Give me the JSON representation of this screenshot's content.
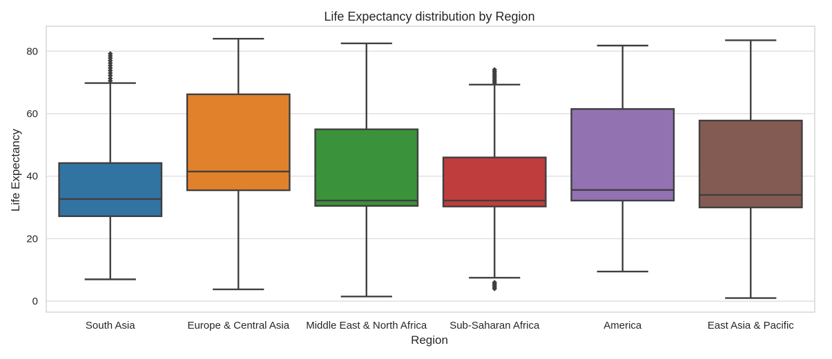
{
  "chart_data": {
    "type": "box",
    "title": "Life Expectancy distribution by Region",
    "xlabel": "Region",
    "ylabel": "Life Expectancy",
    "ylim": [
      -3.5,
      88
    ],
    "yticks": [
      0,
      20,
      40,
      60,
      80
    ],
    "grid": true,
    "legend": "none",
    "categories": [
      "South Asia",
      "Europe & Central Asia",
      "Middle East & North Africa",
      "Sub-Saharan Africa",
      "America",
      "East Asia & Pacific"
    ],
    "colors": [
      "#3274a1",
      "#e1812c",
      "#3a923a",
      "#c03d3e",
      "#9372b2",
      "#845b53"
    ],
    "boxes": [
      {
        "whisker_low": 7.0,
        "q1": 27.2,
        "median": 32.7,
        "q3": 44.2,
        "whisker_high": 69.8,
        "outliers": [
          70.5,
          71.3,
          72.2,
          73.0,
          73.8,
          74.6,
          75.4,
          76.2,
          77.0,
          77.8,
          78.5,
          79.2
        ]
      },
      {
        "whisker_low": 3.8,
        "q1": 35.5,
        "median": 41.5,
        "q3": 66.2,
        "whisker_high": 84.0,
        "outliers": []
      },
      {
        "whisker_low": 1.5,
        "q1": 30.5,
        "median": 32.2,
        "q3": 55.0,
        "whisker_high": 82.5,
        "outliers": []
      },
      {
        "whisker_low": 7.5,
        "q1": 30.3,
        "median": 32.2,
        "q3": 46.0,
        "whisker_high": 69.3,
        "outliers": [
          4.0,
          4.5,
          5.0,
          5.5,
          6.0,
          69.9,
          70.5,
          71.1,
          71.7,
          72.3,
          72.9,
          73.5,
          74.1
        ]
      },
      {
        "whisker_low": 9.5,
        "q1": 32.2,
        "median": 35.6,
        "q3": 61.5,
        "whisker_high": 81.8,
        "outliers": []
      },
      {
        "whisker_low": 1.0,
        "q1": 30.0,
        "median": 34.0,
        "q3": 57.8,
        "whisker_high": 83.5,
        "outliers": []
      }
    ]
  }
}
